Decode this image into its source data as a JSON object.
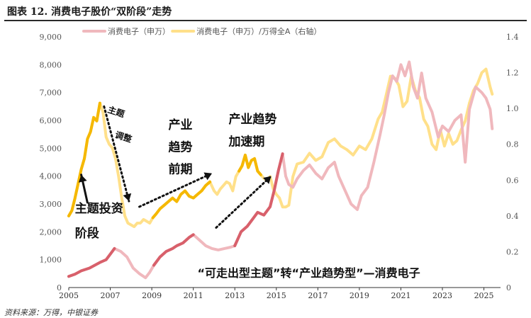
{
  "title": "图表 12. 消费电子股价“双阶段”走势",
  "source": "资料来源：万得，中银证券",
  "chart_data": {
    "type": "line",
    "legend_placement": "top",
    "legend": [
      {
        "label": "消费电子（申万）",
        "color": "#f0b8bd"
      },
      {
        "label": "消费电子（申万）/万得全A（右轴）",
        "color": "#ffe08a"
      }
    ],
    "x_ticks": [
      "2005",
      "2007",
      "2009",
      "2011",
      "2013",
      "2015",
      "2017",
      "2019",
      "2021",
      "2023",
      "2025"
    ],
    "xlim": [
      2005,
      2025.8
    ],
    "y_left": {
      "ticks": [
        "0",
        "1,000",
        "2,000",
        "3,000",
        "4,000",
        "5,000",
        "6,000",
        "7,000",
        "8,000",
        "9,000"
      ],
      "ylim": [
        0,
        9000
      ]
    },
    "y_right": {
      "ticks": [
        "0",
        "0.2",
        "0.4",
        "0.6",
        "0.8",
        "1.0",
        "1.2",
        "1.4"
      ],
      "ylim": [
        0,
        1.4
      ]
    },
    "series": [
      {
        "name": "消费电子（申万）",
        "axis": "left",
        "color": "#f0b8bd",
        "x": [
          2005.0,
          2005.3,
          2005.6,
          2006.0,
          2006.3,
          2006.5,
          2006.8,
          2007.0,
          2007.2,
          2007.5,
          2007.8,
          2008.1,
          2008.4,
          2008.7,
          2008.9,
          2009.1,
          2009.4,
          2009.7,
          2010.0,
          2010.2,
          2010.5,
          2010.8,
          2011.0,
          2011.3,
          2011.6,
          2011.9,
          2012.2,
          2012.5,
          2012.8,
          2013.0,
          2013.3,
          2013.6,
          2013.9,
          2014.1,
          2014.4,
          2014.7,
          2014.9,
          2015.1,
          2015.3,
          2015.45,
          2015.6,
          2015.8,
          2016.0,
          2016.3,
          2016.6,
          2016.9,
          2017.2,
          2017.5,
          2017.8,
          2018.0,
          2018.3,
          2018.6,
          2018.9,
          2019.1,
          2019.4,
          2019.7,
          2020.0,
          2020.2,
          2020.4,
          2020.6,
          2020.8,
          2021.0,
          2021.2,
          2021.4,
          2021.6,
          2021.8,
          2022.0,
          2022.2,
          2022.5,
          2022.8,
          2023.0,
          2023.3,
          2023.6,
          2023.9,
          2024.1,
          2024.3,
          2024.6,
          2024.9,
          2025.1,
          2025.3,
          2025.4
        ],
        "values": [
          400,
          480,
          600,
          700,
          820,
          900,
          1000,
          1200,
          1400,
          1300,
          1100,
          700,
          500,
          350,
          550,
          800,
          1100,
          1300,
          1400,
          1500,
          1600,
          1800,
          1900,
          1700,
          1500,
          1400,
          1350,
          1400,
          1450,
          1500,
          2000,
          2200,
          2500,
          2700,
          2600,
          2900,
          3500,
          4200,
          4800,
          4000,
          3700,
          3600,
          3900,
          4200,
          4400,
          4100,
          3900,
          4300,
          4500,
          4000,
          3500,
          3000,
          2800,
          3300,
          3600,
          4500,
          5500,
          6200,
          7000,
          7600,
          7400,
          8000,
          7600,
          8100,
          7200,
          6800,
          7700,
          6800,
          6300,
          5400,
          5800,
          5600,
          6000,
          6200,
          4500,
          6400,
          7200,
          7000,
          6800,
          6400,
          5700
        ]
      },
      {
        "name": "消费电子（申万）/万得全A（右轴）",
        "axis": "right",
        "color": "#ffe08a",
        "x": [
          2005.0,
          2005.15,
          2005.3,
          2005.45,
          2005.6,
          2005.75,
          2005.9,
          2006.05,
          2006.2,
          2006.35,
          2006.5,
          2006.65,
          2006.8,
          2006.95,
          2007.1,
          2007.25,
          2007.4,
          2007.55,
          2007.7,
          2007.85,
          2008.0,
          2008.15,
          2008.3,
          2008.45,
          2008.6,
          2008.75,
          2008.9,
          2009.05,
          2009.2,
          2009.4,
          2009.6,
          2009.8,
          2010.0,
          2010.2,
          2010.4,
          2010.6,
          2010.8,
          2011.0,
          2011.2,
          2011.4,
          2011.6,
          2011.8,
          2012.0,
          2012.15,
          2012.3,
          2012.45,
          2012.6,
          2012.75,
          2012.9,
          2013.05,
          2013.2,
          2013.35,
          2013.5,
          2013.65,
          2013.8,
          2013.95,
          2014.1,
          2014.25,
          2014.4,
          2014.55,
          2014.7,
          2014.85,
          2015.0,
          2015.15,
          2015.3,
          2015.45,
          2015.6,
          2015.8,
          2016.0,
          2016.3,
          2016.6,
          2016.9,
          2017.2,
          2017.5,
          2017.8,
          2018.1,
          2018.4,
          2018.7,
          2019.0,
          2019.3,
          2019.6,
          2019.9,
          2020.1,
          2020.3,
          2020.5,
          2020.7,
          2020.9,
          2021.1,
          2021.3,
          2021.5,
          2021.7,
          2021.9,
          2022.1,
          2022.3,
          2022.5,
          2022.7,
          2022.9,
          2023.1,
          2023.3,
          2023.5,
          2023.7,
          2023.9,
          2024.1,
          2024.3,
          2024.5,
          2024.7,
          2024.9,
          2025.1,
          2025.3,
          2025.4
        ],
        "values": [
          0.4,
          0.43,
          0.5,
          0.58,
          0.66,
          0.72,
          0.83,
          0.87,
          0.95,
          0.93,
          1.03,
          0.98,
          0.84,
          0.8,
          0.78,
          0.72,
          0.62,
          0.5,
          0.4,
          0.36,
          0.35,
          0.34,
          0.36,
          0.36,
          0.38,
          0.37,
          0.36,
          0.39,
          0.41,
          0.44,
          0.46,
          0.48,
          0.5,
          0.48,
          0.52,
          0.54,
          0.51,
          0.5,
          0.52,
          0.54,
          0.57,
          0.59,
          0.54,
          0.52,
          0.55,
          0.57,
          0.59,
          0.58,
          0.54,
          0.62,
          0.65,
          0.68,
          0.74,
          0.67,
          0.71,
          0.72,
          0.65,
          0.63,
          0.61,
          0.6,
          0.62,
          0.55,
          0.52,
          0.5,
          0.45,
          0.45,
          0.46,
          0.62,
          0.69,
          0.7,
          0.75,
          0.71,
          0.73,
          0.81,
          0.83,
          0.79,
          0.77,
          0.74,
          0.79,
          0.77,
          0.83,
          0.94,
          0.98,
          1.08,
          1.18,
          1.17,
          1.13,
          1.01,
          1.04,
          1.18,
          1.1,
          1.06,
          0.94,
          0.9,
          0.8,
          0.77,
          0.88,
          0.79,
          0.86,
          0.8,
          0.82,
          0.88,
          0.93,
          1.03,
          1.1,
          1.14,
          1.2,
          1.22,
          1.12,
          1.08
        ]
      }
    ],
    "highlights": [
      {
        "series": 1,
        "x_range": [
          2005.0,
          2006.5
        ],
        "color": "#f5b800"
      },
      {
        "series": 1,
        "x_range": [
          2009.0,
          2011.9
        ],
        "color": "#f5b800"
      },
      {
        "series": 1,
        "x_range": [
          2013.1,
          2014.3
        ],
        "color": "#f5b800"
      },
      {
        "series": 0,
        "x_range": [
          2005.0,
          2007.4
        ],
        "color": "#d8606b"
      },
      {
        "series": 0,
        "x_range": [
          2009.0,
          2011.2
        ],
        "color": "#d8606b"
      },
      {
        "series": 0,
        "x_range": [
          2013.0,
          2015.3
        ],
        "color": "#d8606b"
      }
    ],
    "annotations": [
      {
        "text": "主题",
        "x": 2006.85,
        "y": 6300,
        "size": 12,
        "rotate": 18,
        "weight": "bold"
      },
      {
        "text": "调整",
        "x": 2007.2,
        "y": 5400,
        "size": 12,
        "rotate": 18,
        "weight": "bold"
      },
      {
        "text": "产业",
        "x": 2009.8,
        "y": 5700,
        "size": 17,
        "weight": "bold"
      },
      {
        "text": "趋势",
        "x": 2009.8,
        "y": 4900,
        "size": 17,
        "weight": "bold"
      },
      {
        "text": "前期",
        "x": 2009.8,
        "y": 4100,
        "size": 17,
        "weight": "bold"
      },
      {
        "text": "产业趋势",
        "x": 2012.7,
        "y": 5900,
        "size": 17,
        "weight": "bold"
      },
      {
        "text": "加速期",
        "x": 2012.7,
        "y": 5100,
        "size": 17,
        "weight": "bold"
      },
      {
        "text": "主题投资",
        "x": 2005.3,
        "y": 2700,
        "size": 17,
        "weight": "bold"
      },
      {
        "text": "阶段",
        "x": 2005.3,
        "y": 1800,
        "size": 17,
        "weight": "bold"
      },
      {
        "text": "“可走出型主题”转“产业趋势型”—消费电子",
        "x": 2011.2,
        "y": 380,
        "size": 16,
        "weight": "bold"
      }
    ],
    "arrows": [
      {
        "from": [
          2006.7,
          6500
        ],
        "to": [
          2007.9,
          3100
        ],
        "dashed": true
      },
      {
        "from": [
          2008.4,
          2900
        ],
        "to": [
          2011.9,
          4100
        ],
        "dashed": true
      },
      {
        "from": [
          2012.1,
          2150
        ],
        "to": [
          2014.75,
          4000
        ],
        "dashed": true
      },
      {
        "from": [
          2005.9,
          3050
        ],
        "to": [
          2005.6,
          4050
        ],
        "dashed": false
      }
    ]
  }
}
